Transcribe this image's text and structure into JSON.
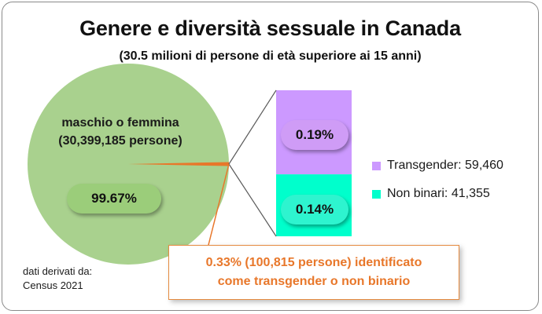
{
  "header": {
    "title": "Genere e diversità sessuale in Canada",
    "subtitle": "(30.5 milioni di persone di età superiore ai 15 anni)"
  },
  "colors": {
    "pie_main": "#a9d18e",
    "transgender": "#cc99ff",
    "non_binary": "#00ffcc",
    "callout": "#e8772a",
    "connector": "#5a5a5a"
  },
  "chart_data": {
    "type": "pie",
    "title": "Genere e diversità sessuale in Canada",
    "subtitle": "(30.5 milioni di persone di età superiore ai 15 anni)",
    "slices": [
      {
        "label": "maschio o femmina",
        "count_text": "(30,399,185 persone)",
        "percent": 99.67,
        "percent_label": "99.67%"
      },
      {
        "label": "0.33% (100,815 persone)",
        "percent": 0.33
      }
    ],
    "breakdown": {
      "type": "bar",
      "stacked": true,
      "of_slice": "0.33% (100,815 persone)",
      "series": [
        {
          "name": "Transgender",
          "count": 59460,
          "percent": 0.19,
          "percent_label": "0.19%",
          "legend_label": "Transgender: 59,460"
        },
        {
          "name": "Non binari",
          "count": 41355,
          "percent": 0.14,
          "percent_label": "0.14%",
          "legend_label": "Non binari: 41,355"
        }
      ]
    },
    "callout": {
      "line1": "0.33% (100,815 persone) identificato",
      "line2": "come transgender o non binario"
    },
    "source": {
      "line1": "dati derivati da:",
      "line2": "Census 2021"
    }
  }
}
